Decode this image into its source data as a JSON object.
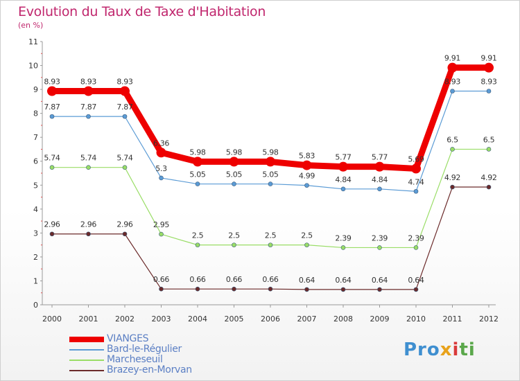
{
  "header": {
    "title": "Evolution du Taux de Taxe d'Habitation",
    "subtitle": "(en %)"
  },
  "brand": {
    "text": "Proxiti",
    "parts": [
      "Pro",
      "x",
      "i",
      "ti"
    ]
  },
  "chart_data": {
    "type": "line",
    "x": [
      "2000",
      "2001",
      "2002",
      "2003",
      "2004",
      "2005",
      "2006",
      "2007",
      "2008",
      "2009",
      "2010",
      "2011",
      "2012"
    ],
    "ylim": [
      0,
      11
    ],
    "yticks": [
      "0",
      "1",
      "2",
      "3",
      "4",
      "5",
      "6",
      "7",
      "8",
      "9",
      "10",
      "11"
    ],
    "grid": false,
    "legend_placement": "bottom-left",
    "series": [
      {
        "name": "VIANGES",
        "color": "#ee0000",
        "values": [
          8.93,
          8.93,
          8.93,
          6.36,
          5.98,
          5.98,
          5.98,
          5.83,
          5.77,
          5.77,
          5.69,
          9.91,
          9.91
        ],
        "labels": [
          "8.93",
          "8.93",
          "8.93",
          "6.36",
          "5.98",
          "5.98",
          "5.98",
          "5.83",
          "5.77",
          "5.77",
          "5.69",
          "9.91",
          "9.91"
        ]
      },
      {
        "name": "Bard-le-Régulier",
        "color": "#5b9bd5",
        "values": [
          7.87,
          7.87,
          7.87,
          5.3,
          5.05,
          5.05,
          5.05,
          4.99,
          4.84,
          4.84,
          4.74,
          8.93,
          8.93
        ],
        "labels": [
          "7.87",
          "7.87",
          "7.87",
          "5.3",
          "5.05",
          "5.05",
          "5.05",
          "4.99",
          "4.84",
          "4.84",
          "4.74",
          "8.93",
          "8.93"
        ]
      },
      {
        "name": "Marcheseuil",
        "color": "#99dd66",
        "values": [
          5.74,
          5.74,
          5.74,
          2.95,
          2.5,
          2.5,
          2.5,
          2.5,
          2.39,
          2.39,
          2.39,
          6.5,
          6.5
        ],
        "labels": [
          "5.74",
          "5.74",
          "5.74",
          "2.95",
          "2.5",
          "2.5",
          "2.5",
          "2.5",
          "2.39",
          "2.39",
          "2.39",
          "6.5",
          "6.5"
        ]
      },
      {
        "name": "Brazey-en-Morvan",
        "color": "#6b2a2a",
        "values": [
          2.96,
          2.96,
          2.96,
          0.66,
          0.66,
          0.66,
          0.66,
          0.64,
          0.64,
          0.64,
          0.64,
          4.92,
          4.92
        ],
        "labels": [
          "2.96",
          "2.96",
          "2.96",
          "0.66",
          "0.66",
          "0.66",
          "0.66",
          "0.64",
          "0.64",
          "0.64",
          "0.64",
          "4.92",
          "4.92"
        ]
      }
    ]
  }
}
